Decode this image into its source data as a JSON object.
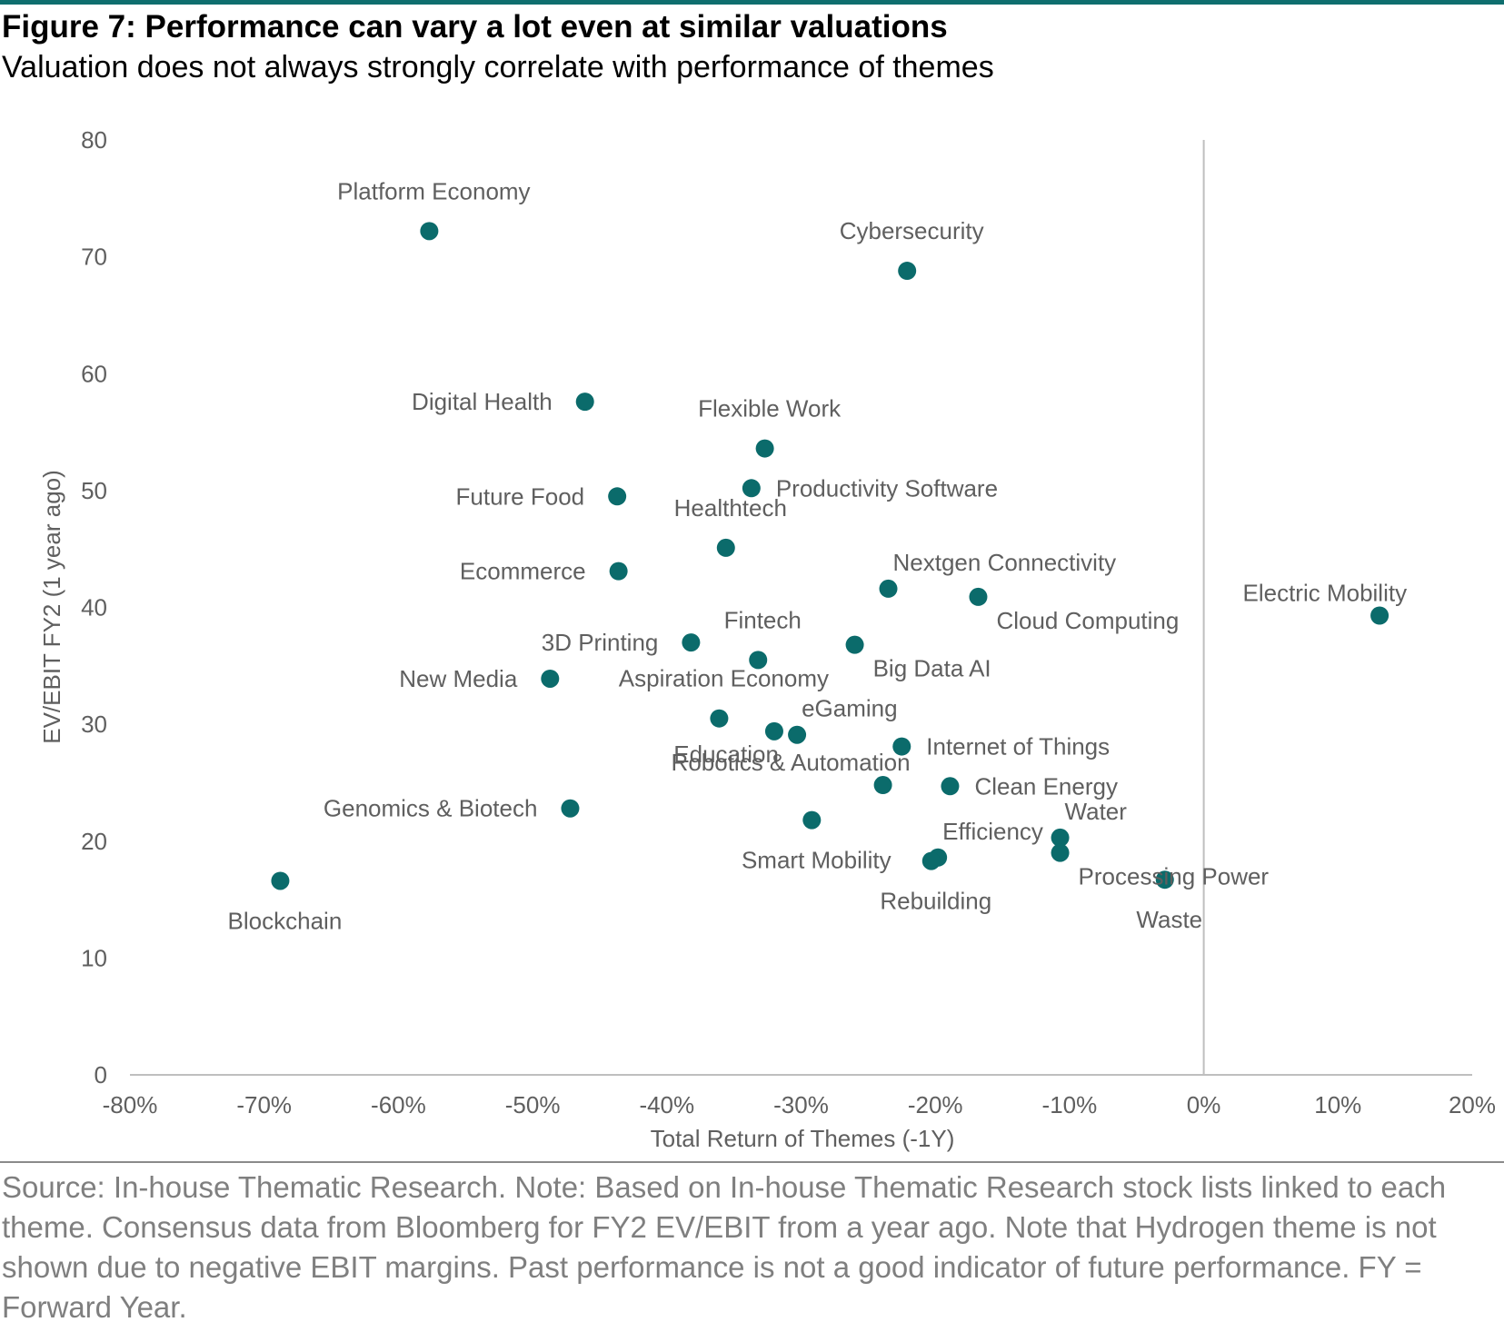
{
  "header": {
    "title": "Figure 7: Performance can vary a lot even at similar valuations",
    "subtitle": "Valuation does not always strongly correlate with performance of themes"
  },
  "footer": {
    "source": "Source: In-house Thematic Research. Note: Based on In-house Thematic Research stock lists linked to each theme. Consensus data from Bloomberg for FY2 EV/EBIT from a year ago. Note that Hydrogen theme is not shown due to negative EBIT margins. Past performance is not a good indicator of future performance. FY = Forward Year."
  },
  "colors": {
    "accent": "#0f6e6e",
    "point": "#0b6b6b",
    "label": "#5f5f5f",
    "axis": "#bfbfbf"
  },
  "chart_data": {
    "type": "scatter",
    "title": "Figure 7: Performance can vary a lot even at similar valuations",
    "subtitle": "Valuation does not always strongly correlate with performance of themes",
    "xlabel": "Total Return of Themes (-1Y)",
    "ylabel": "EV/EBIT FY2 (1 year ago)",
    "xlim": [
      -80,
      20
    ],
    "ylim": [
      0,
      80
    ],
    "x_unit": "%",
    "x_ticks": [
      -80,
      -70,
      -60,
      -50,
      -40,
      -30,
      -20,
      -10,
      0,
      10,
      20
    ],
    "x_tick_labels": [
      "-80%",
      "-70%",
      "-60%",
      "-50%",
      "-40%",
      "-30%",
      "-20%",
      "-10%",
      "0%",
      "10%",
      "20%"
    ],
    "y_ticks": [
      0,
      10,
      20,
      30,
      40,
      50,
      60,
      70,
      80
    ],
    "y_tick_labels": [
      "0",
      "10",
      "20",
      "30",
      "40",
      "50",
      "60",
      "70",
      "80"
    ],
    "grid": false,
    "legend": "none",
    "points": [
      {
        "label": "Platform Economy",
        "x": -57.7,
        "y": 72.2,
        "label_pos": "above"
      },
      {
        "label": "Cybersecurity",
        "x": -22.1,
        "y": 68.8,
        "label_pos": "above"
      },
      {
        "label": "Digital Health",
        "x": -46.1,
        "y": 57.6,
        "label_pos": "left"
      },
      {
        "label": "Flexible Work",
        "x": -32.7,
        "y": 53.6,
        "label_pos": "above"
      },
      {
        "label": "Productivity Software",
        "x": -33.7,
        "y": 50.2,
        "label_pos": "right"
      },
      {
        "label": "Future Food",
        "x": -43.7,
        "y": 49.5,
        "label_pos": "left"
      },
      {
        "label": "Healthtech",
        "x": -35.6,
        "y": 45.1,
        "label_pos": "above"
      },
      {
        "label": "Ecommerce",
        "x": -43.6,
        "y": 43.1,
        "label_pos": "left"
      },
      {
        "label": "Nextgen Connectivity",
        "x": -23.5,
        "y": 41.6,
        "label_pos": "above-right"
      },
      {
        "label": "Cloud Computing",
        "x": -16.8,
        "y": 40.9,
        "label_pos": "below-right"
      },
      {
        "label": "Electric Mobility",
        "x": 13.1,
        "y": 39.3,
        "label_pos": "above-left"
      },
      {
        "label": "3D Printing",
        "x": -38.2,
        "y": 37.0,
        "label_pos": "left"
      },
      {
        "label": "Big Data AI",
        "x": -26.0,
        "y": 36.8,
        "label_pos": "below-right"
      },
      {
        "label": "Fintech",
        "x": -33.2,
        "y": 35.5,
        "label_pos": "above"
      },
      {
        "label": "New Media",
        "x": -48.7,
        "y": 33.9,
        "label_pos": "left"
      },
      {
        "label": "Aspiration Economy",
        "x": -36.1,
        "y": 30.5,
        "label_pos": "above"
      },
      {
        "label": "Education",
        "x": -32.0,
        "y": 29.4,
        "label_pos": "below-left"
      },
      {
        "label": "eGaming",
        "x": -30.3,
        "y": 29.1,
        "label_pos": "above-right"
      },
      {
        "label": "Internet of Things",
        "x": -22.5,
        "y": 28.1,
        "label_pos": "right"
      },
      {
        "label": "Robotics & Automation",
        "x": -23.9,
        "y": 24.8,
        "label_pos": "above-left"
      },
      {
        "label": "Clean Energy",
        "x": -18.9,
        "y": 24.7,
        "label_pos": "right"
      },
      {
        "label": "Genomics & Biotech",
        "x": -47.2,
        "y": 22.8,
        "label_pos": "left"
      },
      {
        "label": "Smart Mobility",
        "x": -29.2,
        "y": 21.8,
        "label_pos": "below"
      },
      {
        "label": "Water",
        "x": -10.7,
        "y": 20.3,
        "label_pos": "above-right"
      },
      {
        "label": "Processing Power",
        "x": -10.7,
        "y": 19.0,
        "label_pos": "below-right"
      },
      {
        "label": "Efficiency",
        "x": -19.8,
        "y": 18.6,
        "label_pos": "above-right"
      },
      {
        "label": "Rebuilding",
        "x": -20.3,
        "y": 18.3,
        "label_pos": "below"
      },
      {
        "label": "Waste",
        "x": -2.9,
        "y": 16.7,
        "label_pos": "below"
      },
      {
        "label": "Blockchain",
        "x": -68.8,
        "y": 16.6,
        "label_pos": "below"
      }
    ]
  }
}
